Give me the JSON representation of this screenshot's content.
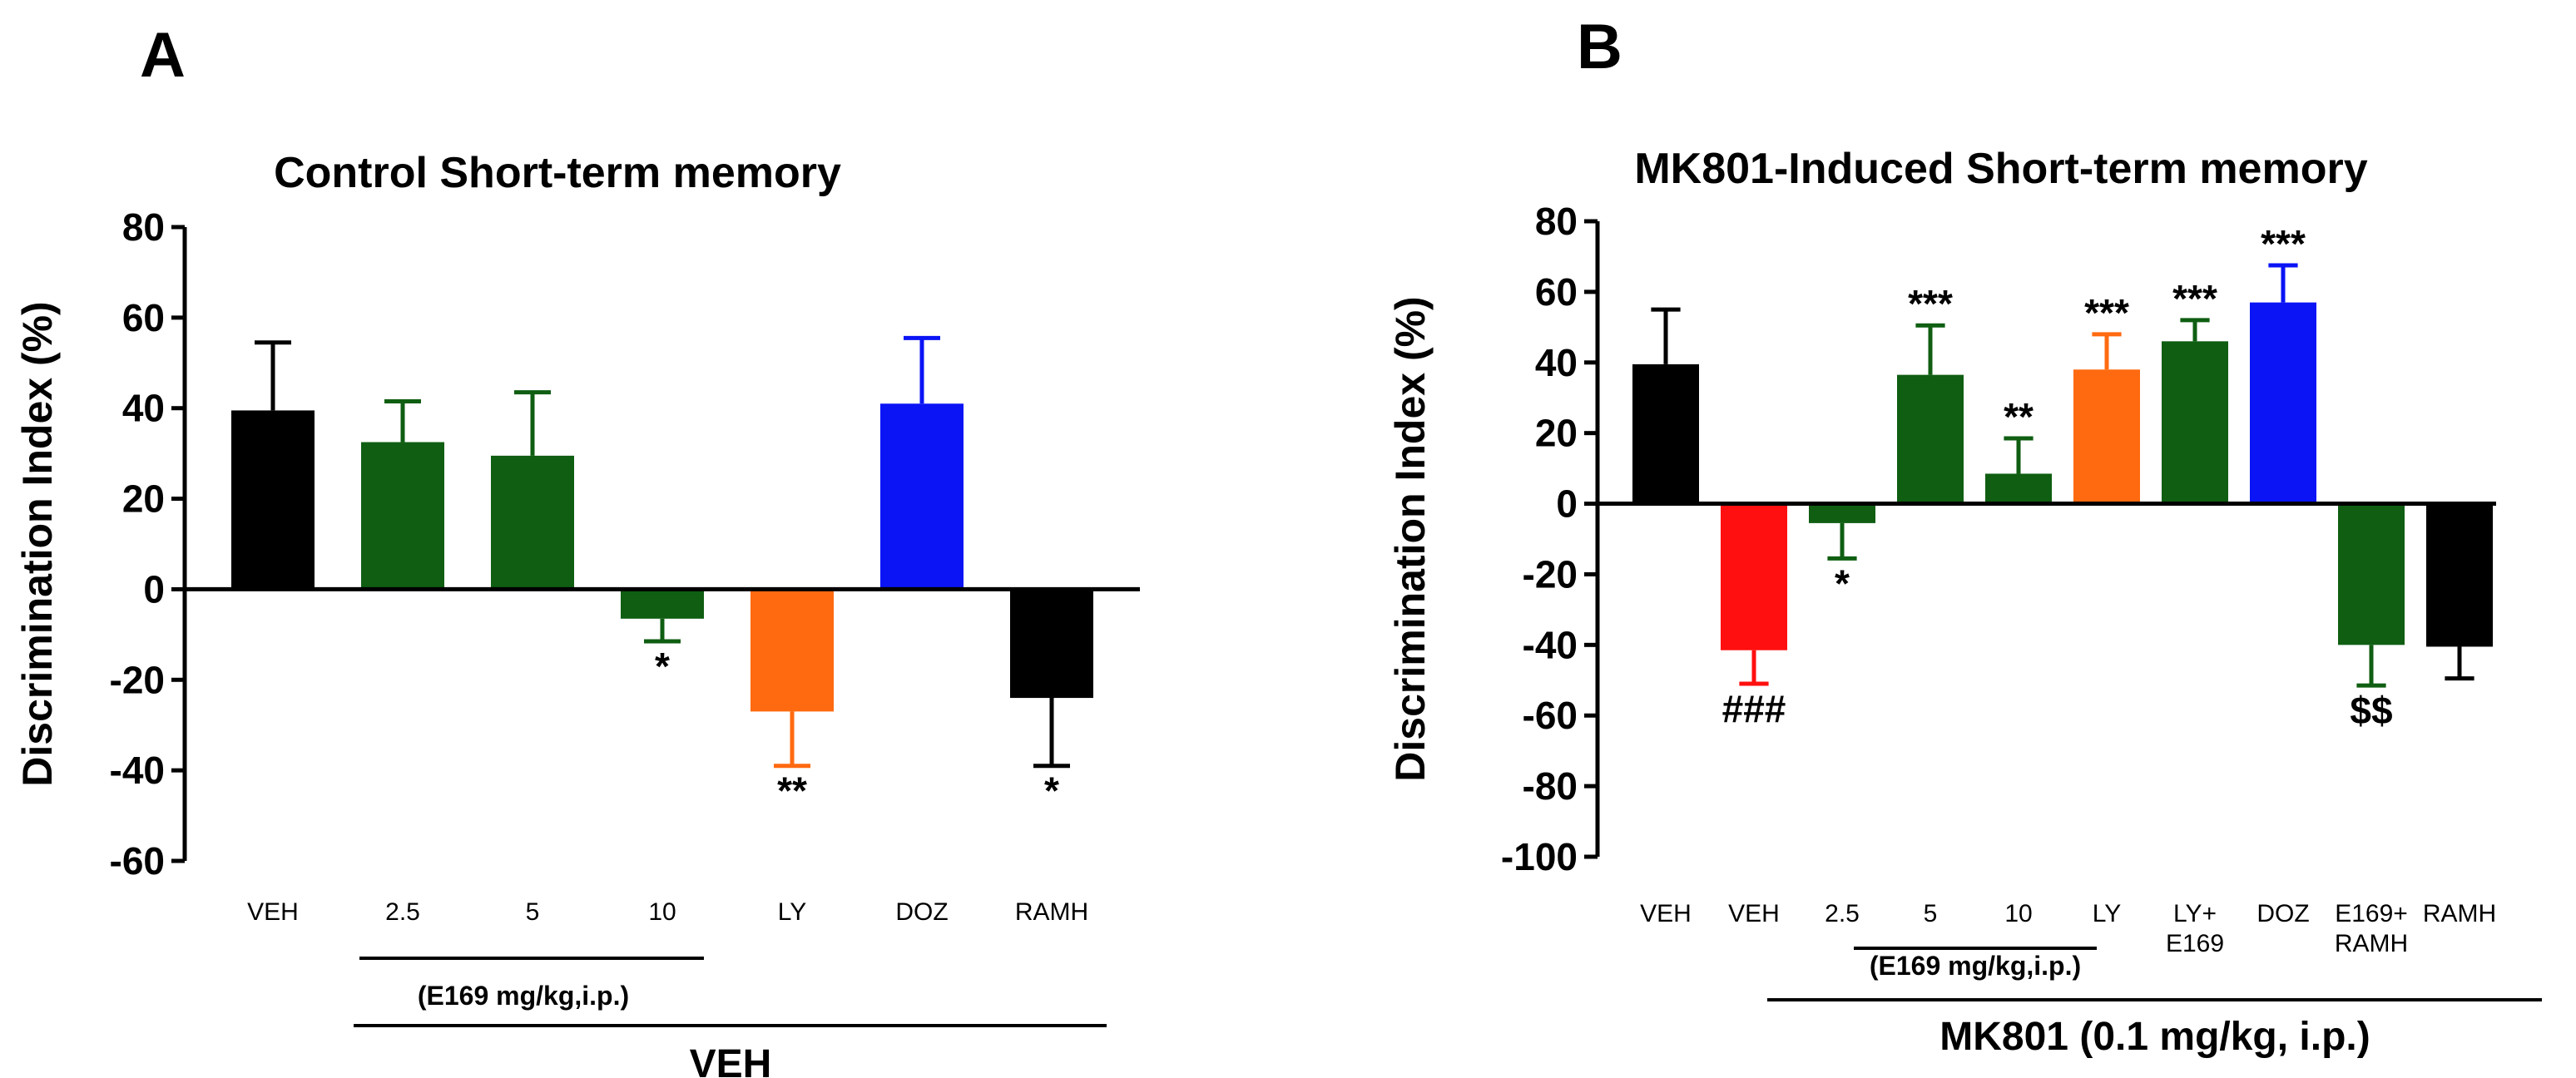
{
  "chart_data": [
    {
      "panel": "A",
      "type": "bar",
      "title": "Control Short-term memory",
      "ylabel": "Discrimination Index (%)",
      "ylim": [
        -60,
        80
      ],
      "yticks": [
        80,
        60,
        40,
        20,
        0,
        -20,
        -40,
        -60
      ],
      "categories": [
        "VEH",
        "2.5",
        "5",
        "10",
        "LY",
        "DOZ",
        "RAMH"
      ],
      "values": [
        39.5,
        32.5,
        29.5,
        -6.5,
        -27,
        41,
        -24
      ],
      "errors": [
        15,
        9,
        14,
        5,
        12,
        14.5,
        15
      ],
      "colors": [
        "#000000",
        "#0f5e12",
        "#0f5e12",
        "#0f5e12",
        "#ff6a10",
        "#0a14f5",
        "#000000"
      ],
      "significance": [
        "",
        "",
        "",
        "*",
        "**",
        "",
        "*"
      ],
      "subgroup_label": "(E169 mg/kg,i.p.)",
      "group_label": "VEH"
    },
    {
      "panel": "B",
      "type": "bar",
      "title": "MK801-Induced Short-term memory",
      "ylabel": "Discrimination Index (%)",
      "ylim": [
        -100,
        80
      ],
      "yticks": [
        80,
        60,
        40,
        20,
        0,
        -20,
        -40,
        -60,
        -80,
        -100
      ],
      "categories": [
        "VEH",
        "VEH",
        "2.5",
        "5",
        "10",
        "LY",
        "LY+ E169",
        "DOZ",
        "E169+ RAMH",
        "RAMH"
      ],
      "values": [
        39.5,
        -41.5,
        -5.5,
        36.5,
        8.5,
        38,
        46,
        57,
        -40,
        -40.5
      ],
      "errors": [
        15.5,
        9.5,
        10,
        14,
        10,
        10,
        6,
        10.5,
        11.5,
        9
      ],
      "colors": [
        "#000000",
        "#ff0f0f",
        "#0f5e12",
        "#0f5e12",
        "#0f5e12",
        "#ff6a10",
        "#0f5e12",
        "#0a14f5",
        "#0f5e12",
        "#000000"
      ],
      "significance": [
        "",
        "###",
        "*",
        "***",
        "**",
        "***",
        "***",
        "***",
        "$$",
        ""
      ],
      "subgroup_label": "(E169 mg/kg,i.p.)",
      "group_label": "MK801 (0.1 mg/kg, i.p.)"
    }
  ]
}
